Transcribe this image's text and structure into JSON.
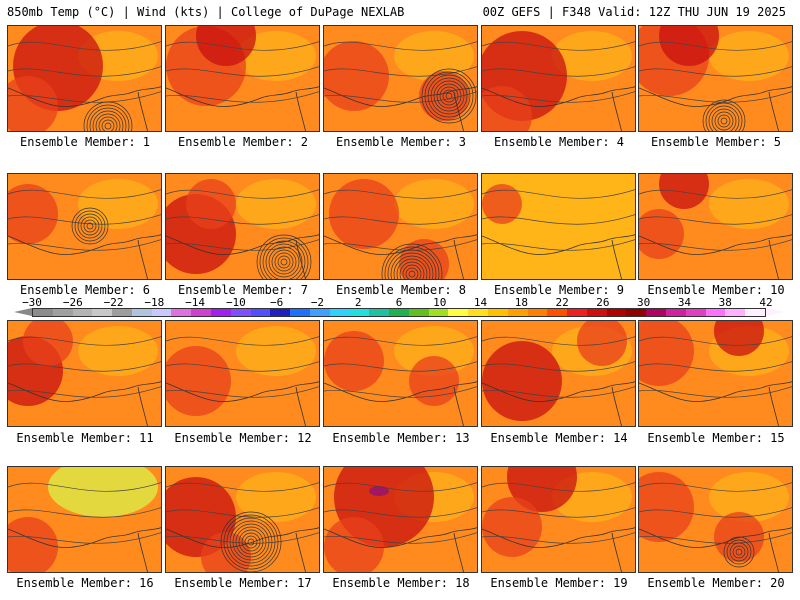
{
  "header": {
    "left": "850mb Temp (°C) | Wind (kts) | College of DuPage NEXLAB",
    "right": "00Z GEFS | F348 Valid: 12Z THU JUN 19 2025"
  },
  "panels": [
    {
      "label": "Ensemble Member: 1"
    },
    {
      "label": "Ensemble Member: 2"
    },
    {
      "label": "Ensemble Member: 3"
    },
    {
      "label": "Ensemble Member: 4"
    },
    {
      "label": "Ensemble Member: 5"
    },
    {
      "label": "Ensemble Member: 6"
    },
    {
      "label": "Ensemble Member: 7"
    },
    {
      "label": "Ensemble Member: 8"
    },
    {
      "label": "Ensemble Member: 9"
    },
    {
      "label": "Ensemble Member: 10"
    },
    {
      "label": "Ensemble Member: 11"
    },
    {
      "label": "Ensemble Member: 12"
    },
    {
      "label": "Ensemble Member: 13"
    },
    {
      "label": "Ensemble Member: 14"
    },
    {
      "label": "Ensemble Member: 15"
    },
    {
      "label": "Ensemble Member: 16"
    },
    {
      "label": "Ensemble Member: 17"
    },
    {
      "label": "Ensemble Member: 18"
    },
    {
      "label": "Ensemble Member: 19"
    },
    {
      "label": "Ensemble Member: 20"
    }
  ],
  "colorbar": {
    "tick_labels": [
      "−30",
      "−26",
      "−22",
      "−18",
      "−14",
      "−10",
      "−6",
      "−2",
      "2",
      "6",
      "10",
      "14",
      "18",
      "22",
      "26",
      "30",
      "34",
      "38",
      "42"
    ],
    "colors": [
      "#8c8c8c",
      "#a0a0a0",
      "#b4b4b4",
      "#c8c8c8",
      "#9e9e9e",
      "#b0c4de",
      "#c8c8ff",
      "#e070e0",
      "#d040d0",
      "#a020f0",
      "#8050ff",
      "#5050ff",
      "#2020c0",
      "#1e70ff",
      "#40a0ff",
      "#30d0ff",
      "#20e0e0",
      "#20c0a0",
      "#20b050",
      "#60c020",
      "#a0e020",
      "#ffff40",
      "#ffe020",
      "#ffc000",
      "#ffa000",
      "#ff8000",
      "#ff5000",
      "#f02020",
      "#d01010",
      "#b00000",
      "#900000",
      "#b00060",
      "#d020a0",
      "#e040c0",
      "#ff70ff",
      "#ffb0ff",
      "#fff0ff"
    ]
  },
  "legend_colors": {
    "warm_base": "#ff8a1e",
    "hot": "#e8401c",
    "very_hot": "#c81010",
    "mild": "#ffb418",
    "cool": "#ffe030",
    "coolest": "#e0e040",
    "extreme": "#a01860"
  }
}
